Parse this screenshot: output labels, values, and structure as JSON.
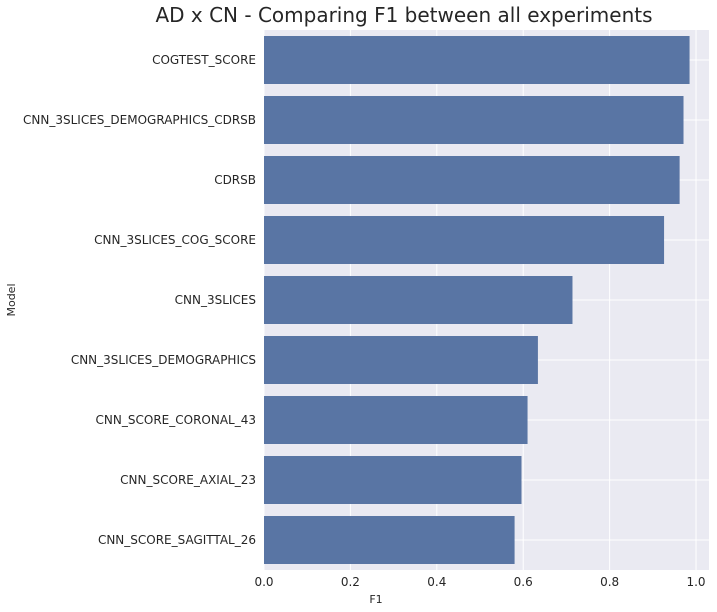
{
  "chart_data": {
    "type": "bar",
    "orientation": "horizontal",
    "title": "AD x CN - Comparing F1 between all experiments",
    "xlabel": "F1",
    "ylabel": "Model",
    "xlim": [
      0.0,
      1.03
    ],
    "xticks": [
      0.0,
      0.2,
      0.4,
      0.6,
      0.8,
      1.0
    ],
    "xtick_labels": [
      "0.0",
      "0.2",
      "0.4",
      "0.6",
      "0.8",
      "1.0"
    ],
    "grid": true,
    "bar_color": "#5975a4",
    "background_color": "#eaeaf2",
    "categories": [
      "COGTEST_SCORE",
      "CNN_3SLICES_DEMOGRAPHICS_CDRSB",
      "CDRSB",
      "CNN_3SLICES_COG_SCORE",
      "CNN_3SLICES",
      "CNN_3SLICES_DEMOGRAPHICS",
      "CNN_SCORE_CORONAL_43",
      "CNN_SCORE_AXIAL_23",
      "CNN_SCORE_SAGITTAL_26"
    ],
    "values": [
      0.985,
      0.971,
      0.962,
      0.926,
      0.714,
      0.634,
      0.61,
      0.596,
      0.58
    ]
  }
}
